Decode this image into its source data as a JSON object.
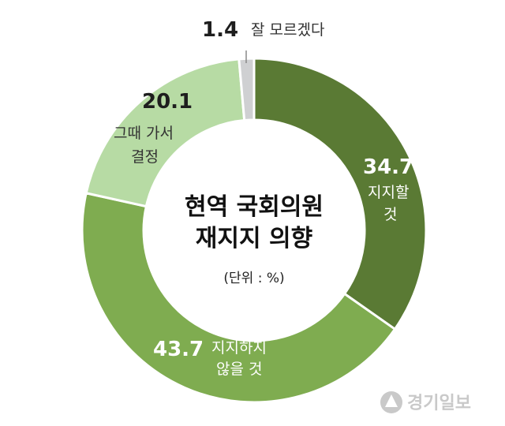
{
  "chart_data": {
    "type": "pie",
    "style": "donut",
    "title_lines": [
      "현역 국회의원",
      "재지지 의향"
    ],
    "unit": "(단위 : %)",
    "slices": [
      {
        "value_label": "34.7",
        "value": 34.7,
        "label_lines": [
          "지지할",
          "것"
        ],
        "color": "#5a7a34"
      },
      {
        "value_label": "43.7",
        "value": 43.7,
        "label_lines": [
          "지지하지",
          "않을 것"
        ],
        "color": "#7fac50"
      },
      {
        "value_label": "20.1",
        "value": 20.1,
        "label_lines": [
          "그때 가서",
          "결정"
        ],
        "color": "#b7dba4"
      },
      {
        "value_label": "1.4",
        "value": 1.4,
        "label_lines": [
          "잘 모르겠다"
        ],
        "color": "#cfd0d2"
      }
    ]
  },
  "colors": {
    "separator": "#ffffff",
    "leader_line": "#888888",
    "logo": "#c9c9c9"
  },
  "logo": {
    "text": "경기일보",
    "icon": "gyeonggi-ilbo-logo-icon"
  }
}
